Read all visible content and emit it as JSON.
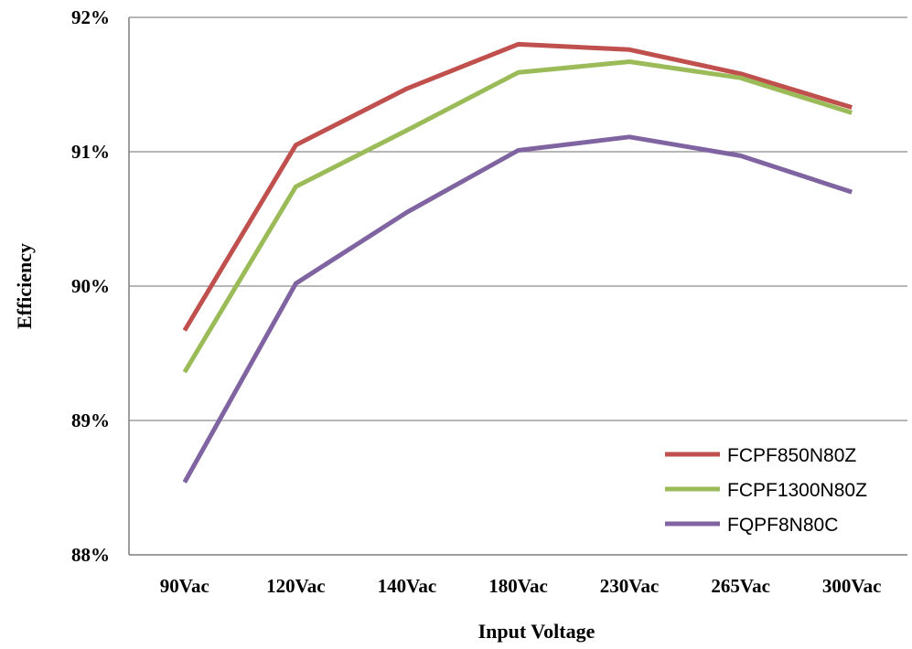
{
  "chart_data": {
    "type": "line",
    "title": "",
    "xlabel": "Input Voltage",
    "ylabel": "Efficiency",
    "categories": [
      "90Vac",
      "120Vac",
      "140Vac",
      "180Vac",
      "230Vac",
      "265Vac",
      "300Vac"
    ],
    "ylim": [
      88,
      92
    ],
    "yticks": [
      88,
      89,
      90,
      91,
      92
    ],
    "ytick_labels": [
      "88%",
      "89%",
      "90%",
      "91%",
      "92%"
    ],
    "grid": true,
    "legend_position": "bottom-right",
    "series": [
      {
        "name": "FCPF850N80Z",
        "color": "#c0504d",
        "values": [
          89.67,
          91.05,
          91.47,
          91.8,
          91.76,
          91.58,
          91.33
        ]
      },
      {
        "name": "FCPF1300N80Z",
        "color": "#9bbb59",
        "values": [
          89.36,
          90.74,
          91.16,
          91.59,
          91.67,
          91.55,
          91.29
        ]
      },
      {
        "name": "FQPF8N80C",
        "color": "#8064a2",
        "values": [
          88.54,
          90.02,
          90.55,
          91.01,
          91.11,
          90.97,
          90.7
        ]
      }
    ]
  }
}
